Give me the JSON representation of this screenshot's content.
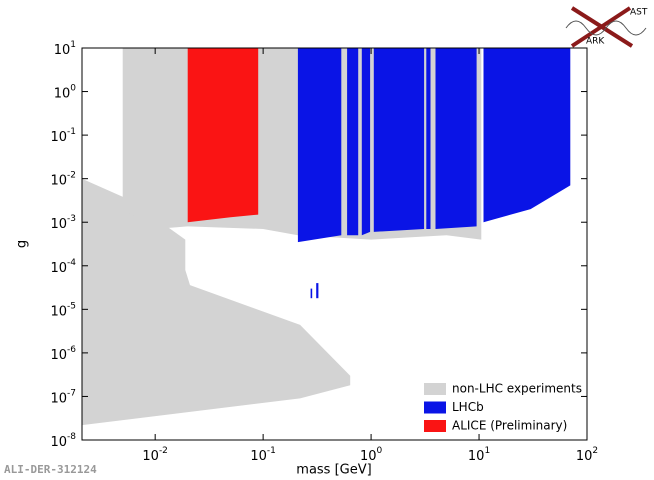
{
  "chart_data": {
    "type": "region",
    "x_label": "mass [GeV]",
    "y_label": "g",
    "xscale": "log",
    "yscale": "log",
    "xlim": [
      0.0021,
      100
    ],
    "ylim": [
      1e-08,
      10
    ],
    "xticks": [
      {
        "value": 0.01,
        "label": "10",
        "exponent": "-2"
      },
      {
        "value": 0.1,
        "label": "10",
        "exponent": "-1"
      },
      {
        "value": 1,
        "label": "10",
        "exponent": "0"
      },
      {
        "value": 10,
        "label": "10",
        "exponent": "1"
      },
      {
        "value": 100,
        "label": "10",
        "exponent": "2"
      }
    ],
    "yticks": [
      {
        "value": 1e-08,
        "label": "10",
        "exponent": "-8"
      },
      {
        "value": 1e-07,
        "label": "10",
        "exponent": "-7"
      },
      {
        "value": 1e-06,
        "label": "10",
        "exponent": "-6"
      },
      {
        "value": 1e-05,
        "label": "10",
        "exponent": "-5"
      },
      {
        "value": 0.0001,
        "label": "10",
        "exponent": "-4"
      },
      {
        "value": 0.001,
        "label": "10",
        "exponent": "-3"
      },
      {
        "value": 0.01,
        "label": "10",
        "exponent": "-2"
      },
      {
        "value": 0.1,
        "label": "10",
        "exponent": "-1"
      },
      {
        "value": 1,
        "label": "10",
        "exponent": "0"
      },
      {
        "value": 10,
        "label": "10",
        "exponent": "1"
      }
    ],
    "legend": "lower right",
    "series": [
      {
        "name": "non-LHC experiments",
        "color": "#d3d3d3",
        "polygons": [
          {
            "x": [
              0.0021,
              0.0059,
              0.019,
              0.019,
              0.021,
              0.22,
              0.64,
              0.64,
              0.22,
              0.0021
            ],
            "y": [
              0.01,
              0.0032,
              0.0004,
              8e-05,
              3.6e-05,
              4.4e-06,
              3e-07,
              1.8e-07,
              9e-08,
              2.2e-08
            ]
          },
          {
            "x": [
              0.005,
              10.5,
              10.5,
              5,
              1,
              0.21,
              0.1,
              0.02,
              0.01,
              0.005
            ],
            "y": [
              10,
              10,
              0.0004,
              0.0005,
              0.0004,
              0.0005,
              0.0007,
              0.0008,
              0.0007,
              0.002
            ]
          }
        ]
      },
      {
        "name": "LHCb",
        "color": "#0a14e6",
        "polygons": [
          {
            "x": [
              0.21,
              0.53,
              0.53,
              0.21
            ],
            "y": [
              10,
              10,
              0.0005,
              0.00035
            ]
          },
          {
            "x": [
              0.6,
              0.76,
              0.76,
              0.6
            ],
            "y": [
              10,
              10,
              0.0005,
              0.0005
            ]
          },
          {
            "x": [
              0.82,
              0.98,
              0.98,
              0.82
            ],
            "y": [
              10,
              10,
              0.0006,
              0.0005
            ]
          },
          {
            "x": [
              1.06,
              3.1,
              3.1,
              1.06
            ],
            "y": [
              10,
              10,
              0.0007,
              0.0006
            ]
          },
          {
            "x": [
              3.25,
              3.55,
              3.55,
              3.25
            ],
            "y": [
              10,
              10,
              0.0007,
              0.0007
            ]
          },
          {
            "x": [
              3.95,
              9.5,
              9.5,
              3.95
            ],
            "y": [
              10,
              10,
              0.0008,
              0.0007
            ]
          },
          {
            "x": [
              11,
              70,
              70,
              30,
              11
            ],
            "y": [
              10,
              10,
              0.007,
              0.002,
              0.001
            ]
          },
          {
            "x": [
              0.275,
              0.285,
              0.285,
              0.275
            ],
            "y": [
              3e-05,
              3e-05,
              1.8e-05,
              1.8e-05
            ]
          },
          {
            "x": [
              0.31,
              0.325,
              0.325,
              0.31
            ],
            "y": [
              4e-05,
              4e-05,
              1.8e-05,
              1.8e-05
            ]
          }
        ]
      },
      {
        "name": "ALICE (Preliminary)",
        "color": "#fa1414",
        "polygons": [
          {
            "x": [
              0.02,
              0.09,
              0.09,
              0.05,
              0.02
            ],
            "y": [
              10,
              10,
              0.0015,
              0.0013,
              0.001
            ]
          }
        ]
      }
    ],
    "logo": {
      "top": "AST",
      "bottom": "ARK"
    },
    "footer": "ALI-DER-312124"
  }
}
